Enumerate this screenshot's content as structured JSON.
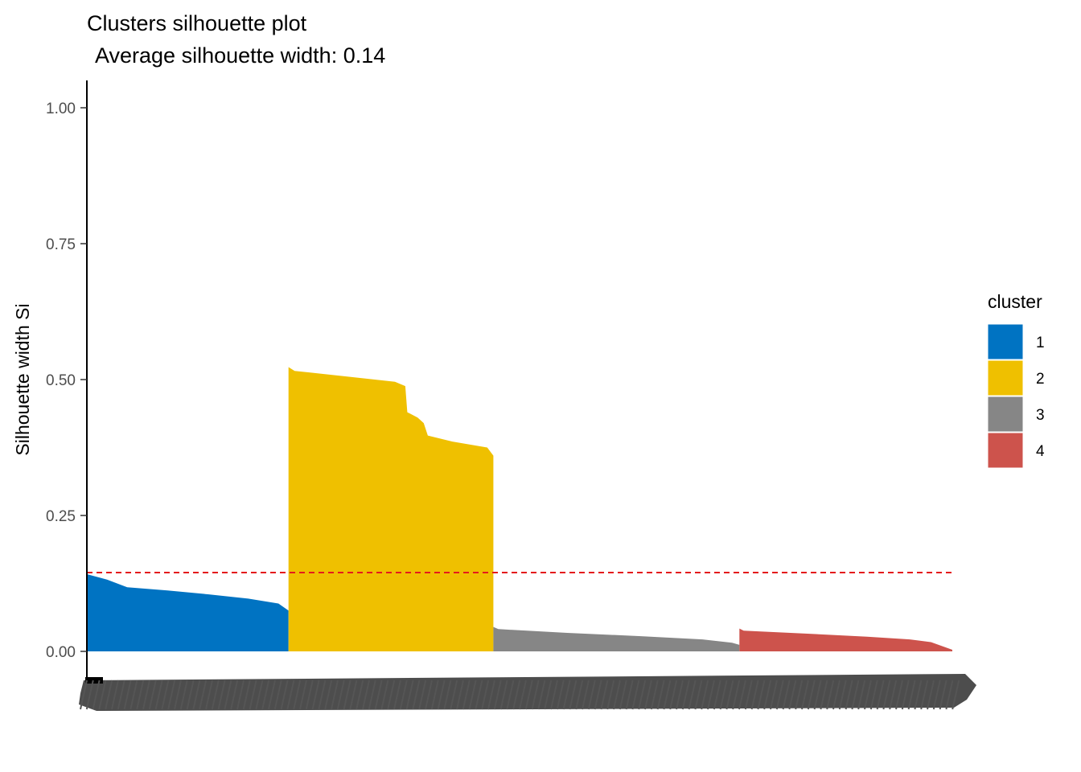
{
  "chart_data": {
    "type": "bar",
    "title": "Clusters silhouette plot",
    "subtitle": "Average silhouette width: 0.14",
    "xlabel": "",
    "ylabel": "Silhouette width Si",
    "ylim": [
      0,
      1.05
    ],
    "yticks": [
      "0.00",
      "0.25",
      "0.50",
      "0.75",
      "1.00"
    ],
    "average_silhouette_width": 0.14,
    "average_line": {
      "value": 0.145,
      "color": "#e41a1c",
      "style": "dashed"
    },
    "legend": {
      "title": "cluster",
      "position": "right"
    },
    "grid": false,
    "observations_per_cluster_estimate": [
      250,
      254,
      305,
      264
    ],
    "series": [
      {
        "name": "1",
        "color": "#0073c2",
        "profile": [
          [
            0,
            0.142
          ],
          [
            0.1,
            0.132
          ],
          [
            0.2,
            0.118
          ],
          [
            0.4,
            0.112
          ],
          [
            0.6,
            0.105
          ],
          [
            0.8,
            0.097
          ],
          [
            0.95,
            0.088
          ],
          [
            1.0,
            0.075
          ]
        ]
      },
      {
        "name": "2",
        "color": "#efc000",
        "profile": [
          [
            0,
            0.523
          ],
          [
            0.03,
            0.516
          ],
          [
            0.3,
            0.505
          ],
          [
            0.52,
            0.496
          ],
          [
            0.57,
            0.488
          ],
          [
            0.58,
            0.44
          ],
          [
            0.63,
            0.43
          ],
          [
            0.66,
            0.42
          ],
          [
            0.68,
            0.397
          ],
          [
            0.8,
            0.386
          ],
          [
            0.97,
            0.375
          ],
          [
            1.0,
            0.36
          ]
        ]
      },
      {
        "name": "3",
        "color": "#868686",
        "profile": [
          [
            0,
            0.045
          ],
          [
            0.02,
            0.041
          ],
          [
            0.3,
            0.034
          ],
          [
            0.6,
            0.028
          ],
          [
            0.85,
            0.022
          ],
          [
            0.97,
            0.016
          ],
          [
            1.0,
            0.012
          ]
        ]
      },
      {
        "name": "4",
        "color": "#cd534c",
        "profile": [
          [
            0,
            0.042
          ],
          [
            0.02,
            0.038
          ],
          [
            0.3,
            0.033
          ],
          [
            0.6,
            0.027
          ],
          [
            0.8,
            0.022
          ],
          [
            0.9,
            0.017
          ],
          [
            1.0,
            0.003
          ]
        ]
      }
    ]
  }
}
